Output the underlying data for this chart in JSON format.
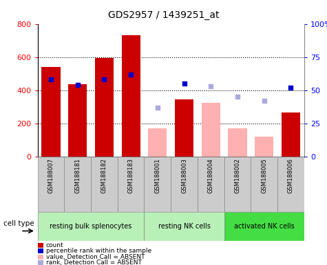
{
  "title": "GDS2957 / 1439251_at",
  "samples": [
    "GSM188007",
    "GSM188181",
    "GSM188182",
    "GSM188183",
    "GSM188001",
    "GSM188003",
    "GSM188004",
    "GSM188002",
    "GSM188005",
    "GSM188006"
  ],
  "groups": [
    {
      "label": "resting bulk splenocytes",
      "color": "#b8f0b8",
      "start": 0,
      "end": 4
    },
    {
      "label": "resting NK cells",
      "color": "#b8f0b8",
      "start": 4,
      "end": 7
    },
    {
      "label": "activated NK cells",
      "color": "#44dd44",
      "start": 7,
      "end": 10
    }
  ],
  "bar_color_present": "#cc0000",
  "bar_color_absent": "#ffb0b0",
  "dot_color_present": "#0000cc",
  "dot_color_absent": "#aaaadd",
  "count_present": [
    540,
    435,
    595,
    730,
    null,
    345,
    null,
    null,
    null,
    265
  ],
  "count_absent": [
    null,
    null,
    null,
    null,
    170,
    null,
    325,
    170,
    120,
    null
  ],
  "rank_present": [
    58,
    54,
    58,
    62,
    null,
    55,
    null,
    null,
    null,
    52
  ],
  "rank_absent": [
    null,
    null,
    null,
    null,
    37,
    null,
    53,
    45,
    42,
    null
  ],
  "ylim_left": [
    0,
    800
  ],
  "ylim_right": [
    0,
    100
  ],
  "yticks_left": [
    0,
    200,
    400,
    600,
    800
  ],
  "yticks_right": [
    0,
    25,
    50,
    75,
    100
  ],
  "yticklabels_right": [
    "0",
    "25",
    "50",
    "75",
    "100%"
  ],
  "cell_type_label": "cell type",
  "legend_items": [
    {
      "label": "count",
      "color": "#cc0000"
    },
    {
      "label": "percentile rank within the sample",
      "color": "#0000cc"
    },
    {
      "label": "value, Detection Call = ABSENT",
      "color": "#ffb0b0"
    },
    {
      "label": "rank, Detection Call = ABSENT",
      "color": "#aaaadd"
    }
  ],
  "sample_bg_color": "#cccccc",
  "sample_border_color": "#888888"
}
